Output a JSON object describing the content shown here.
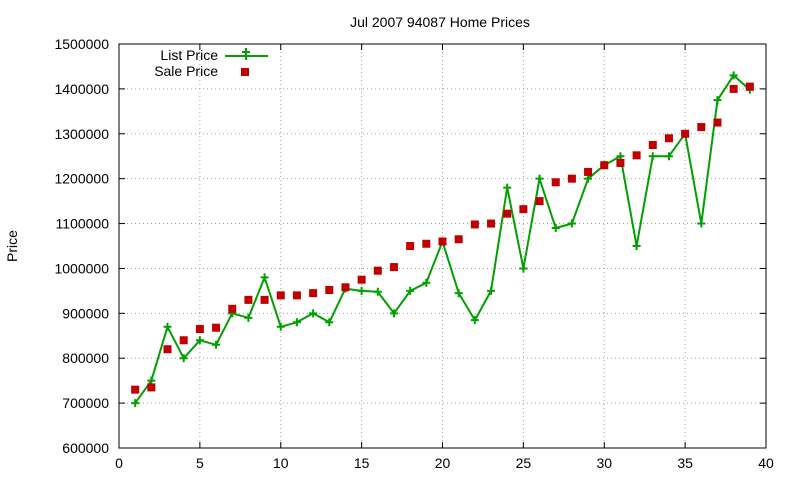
{
  "chart_data": {
    "type": "line",
    "title": "Jul 2007 94087 Home Prices",
    "xlabel": "",
    "ylabel": "Price",
    "xlim": [
      0,
      40
    ],
    "ylim": [
      600000,
      1500000
    ],
    "x_ticks": [
      "0",
      "5",
      "10",
      "15",
      "20",
      "25",
      "30",
      "35",
      "40"
    ],
    "y_ticks": [
      "600000",
      "700000",
      "800000",
      "900000",
      "1000000",
      "1100000",
      "1200000",
      "1300000",
      "1400000",
      "1500000"
    ],
    "grid": true,
    "legend": "top-left",
    "series": [
      {
        "name": "List Price",
        "style": "linespoints",
        "color": "#00a000",
        "x": [
          1,
          2,
          3,
          4,
          5,
          6,
          7,
          8,
          9,
          10,
          11,
          12,
          13,
          14,
          15,
          16,
          17,
          18,
          19,
          20,
          21,
          22,
          23,
          24,
          25,
          26,
          27,
          28,
          29,
          30,
          31,
          32,
          33,
          34,
          35,
          36,
          37,
          38,
          39
        ],
        "values": [
          700000,
          750000,
          870000,
          800000,
          840000,
          830000,
          900000,
          890000,
          980000,
          870000,
          880000,
          900000,
          880000,
          955000,
          950000,
          948000,
          900000,
          950000,
          968000,
          1060000,
          945000,
          885000,
          950000,
          1180000,
          1000000,
          1200000,
          1090000,
          1100000,
          1200000,
          1230000,
          1250000,
          1050000,
          1250000,
          1250000,
          1300000,
          1100000,
          1375000,
          1430000,
          1398000
        ]
      },
      {
        "name": "Sale Price",
        "style": "points",
        "color": "#c00000",
        "x": [
          1,
          2,
          3,
          4,
          5,
          6,
          7,
          8,
          9,
          10,
          11,
          12,
          13,
          14,
          15,
          16,
          17,
          18,
          19,
          20,
          21,
          22,
          23,
          24,
          25,
          26,
          27,
          28,
          29,
          30,
          31,
          32,
          33,
          34,
          35,
          36,
          37,
          38,
          39
        ],
        "values": [
          730000,
          735000,
          820000,
          840000,
          865000,
          868000,
          910000,
          930000,
          930000,
          940000,
          940000,
          945000,
          952000,
          958000,
          975000,
          995000,
          1003000,
          1050000,
          1055000,
          1060000,
          1065000,
          1098000,
          1100000,
          1122000,
          1132000,
          1150000,
          1192000,
          1200000,
          1215000,
          1230000,
          1235000,
          1252000,
          1275000,
          1290000,
          1300000,
          1315000,
          1325000,
          1400000,
          1405000
        ]
      }
    ]
  }
}
